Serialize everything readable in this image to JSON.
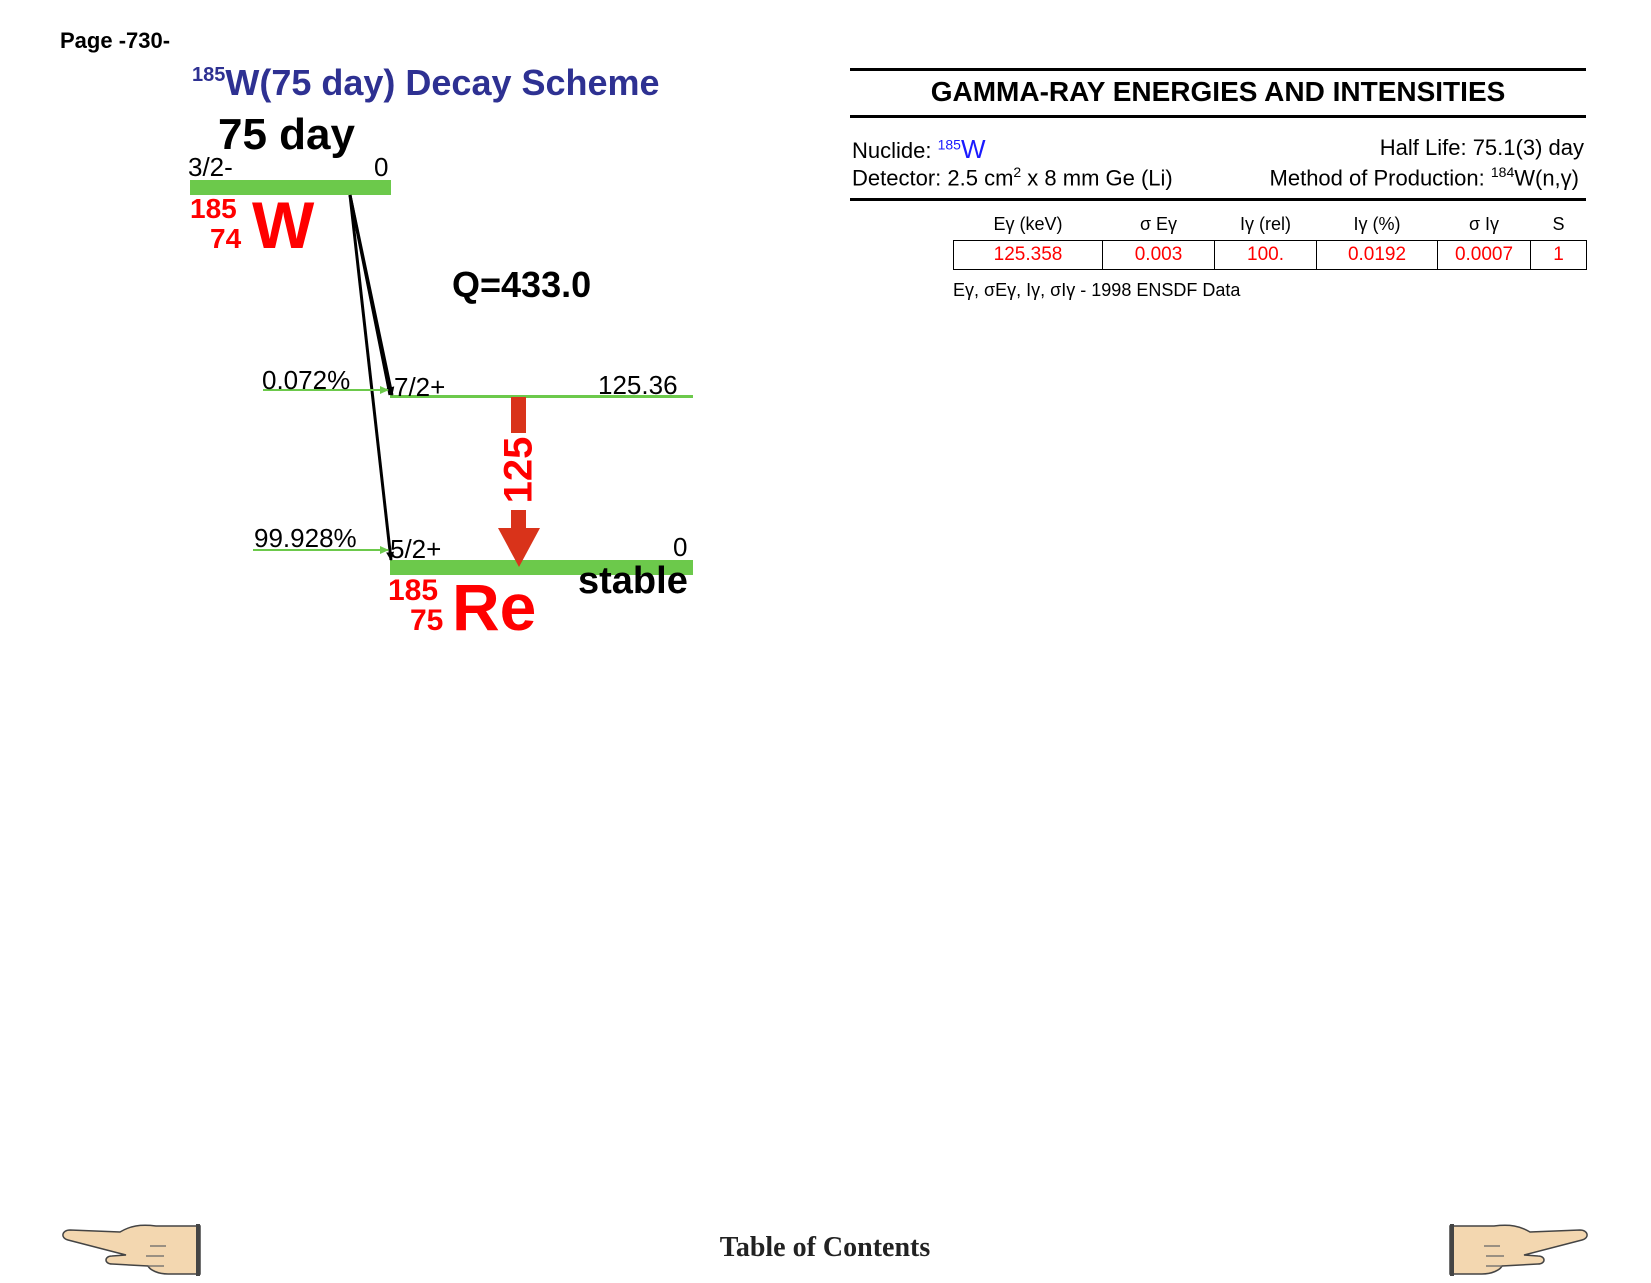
{
  "page": {
    "number_label": "Page -730-"
  },
  "scheme": {
    "title_mass": "185",
    "title_rest": "W(75 day) Decay Scheme",
    "half_life": "75 day",
    "parent": {
      "spin": "3/2-",
      "energy": "0",
      "mass": "185",
      "z": "74",
      "symbol": "W"
    },
    "q_value": "Q=433.0",
    "levels": [
      {
        "spin": "7/2+",
        "energy": "125.36",
        "branch": "0.072%"
      },
      {
        "spin": "5/2+",
        "energy": "0",
        "branch": "99.928%"
      }
    ],
    "gamma_label": "125",
    "daughter": {
      "mass": "185",
      "z": "75",
      "symbol": "Re",
      "status": "stable"
    },
    "colors": {
      "level": "#6cc94b",
      "gamma": "#d9331a",
      "nuclide": "#ff0000",
      "title": "#2e3192"
    }
  },
  "panel": {
    "title": "GAMMA-RAY ENERGIES AND INTENSITIES",
    "nuclide_label": "Nuclide: ",
    "nuclide_mass": "185",
    "nuclide_symbol": "W",
    "half_life": "Half Life: 75.1(3) day",
    "detector_prefix": "Detector: 2.5 cm",
    "detector_sup": "2",
    "detector_suffix": " x 8 mm Ge (Li)",
    "production_prefix": "Method of Production: ",
    "production_sup": "184",
    "production_suffix": "W(n,γ)",
    "table": {
      "headers": [
        "Eγ (keV)",
        "σ Eγ",
        "Iγ (rel)",
        "Iγ (%)",
        "σ Iγ",
        "S"
      ],
      "rows": [
        [
          "125.358",
          "0.003",
          "100.",
          "0.0192",
          "0.0007",
          "1"
        ]
      ]
    },
    "footnote_symbols": "Eγ, σEγ, Iγ, σIγ",
    "footnote_dash": "-",
    "footnote_text": "1998 ENSDF Data"
  },
  "footer": {
    "toc_label": "Table of Contents",
    "prev_icon": "hand-pointing-left-icon",
    "next_icon": "hand-pointing-right-icon"
  }
}
